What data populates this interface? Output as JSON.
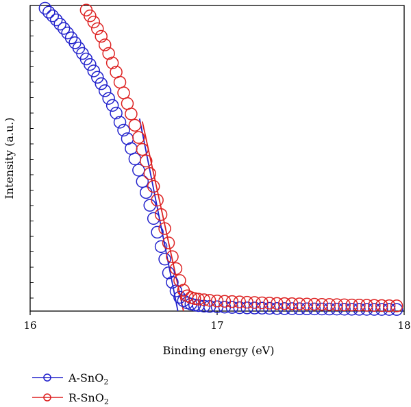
{
  "chart_data": {
    "type": "scatter",
    "xlabel": "Binding energy (eV)",
    "ylabel": "Intensity (a.u.)",
    "xlim": [
      16,
      18
    ],
    "ylim": [
      0,
      100
    ],
    "x_ticks": [
      "16",
      "17",
      "18"
    ],
    "grid": false,
    "legend_position": "bottom-left",
    "series": [
      {
        "name_base": "A-SnO",
        "name_sub": "2",
        "color": "#2222cc",
        "marker": "open-circle",
        "x": [
          16.08,
          16.1,
          16.12,
          16.14,
          16.16,
          16.18,
          16.2,
          16.22,
          16.24,
          16.26,
          16.28,
          16.3,
          16.32,
          16.34,
          16.36,
          16.38,
          16.4,
          16.42,
          16.44,
          16.46,
          16.48,
          16.5,
          16.52,
          16.54,
          16.56,
          16.58,
          16.6,
          16.62,
          16.64,
          16.66,
          16.68,
          16.7,
          16.72,
          16.74,
          16.76,
          16.78,
          16.8,
          16.82,
          16.84,
          16.86,
          16.88,
          16.9,
          16.93,
          16.96,
          17.0,
          17.04,
          17.08,
          17.12,
          17.16,
          17.2,
          17.24,
          17.28,
          17.32,
          17.36,
          17.4,
          17.44,
          17.48,
          17.52,
          17.56,
          17.6,
          17.64,
          17.68,
          17.72,
          17.76,
          17.8,
          17.84,
          17.88,
          17.92,
          17.96
        ],
        "y": [
          99.1,
          97.8,
          96.6,
          95.3,
          93.9,
          92.5,
          91.0,
          89.4,
          87.8,
          86.1,
          84.3,
          82.5,
          80.7,
          78.6,
          76.5,
          74.4,
          72.1,
          69.6,
          67.3,
          64.8,
          61.8,
          59.2,
          56.4,
          53.2,
          49.8,
          46.1,
          42.4,
          38.8,
          34.6,
          30.3,
          25.8,
          21.1,
          17.0,
          12.5,
          9.4,
          6.6,
          4.5,
          3.4,
          2.7,
          2.3,
          2.0,
          1.8,
          1.6,
          1.5,
          1.4,
          1.3,
          1.2,
          1.1,
          1.05,
          1.0,
          0.95,
          0.9,
          0.85,
          0.8,
          0.78,
          0.75,
          0.72,
          0.7,
          0.68,
          0.66,
          0.64,
          0.62,
          0.6,
          0.58,
          0.56,
          0.55,
          0.54,
          0.53,
          0.52
        ],
        "fit_line": {
          "x": [
            16.585,
            16.79
          ],
          "y": [
            63.0,
            0.0
          ]
        }
      },
      {
        "name_base": "R-SnO",
        "name_sub": "2",
        "color": "#dd2222",
        "marker": "open-circle",
        "x": [
          16.3,
          16.32,
          16.34,
          16.36,
          16.38,
          16.4,
          16.42,
          16.44,
          16.46,
          16.48,
          16.5,
          16.52,
          16.54,
          16.56,
          16.58,
          16.6,
          16.62,
          16.64,
          16.66,
          16.68,
          16.7,
          16.72,
          16.74,
          16.76,
          16.78,
          16.8,
          16.82,
          16.84,
          16.86,
          16.88,
          16.9,
          16.93,
          16.96,
          17.0,
          17.04,
          17.08,
          17.12,
          17.16,
          17.2,
          17.24,
          17.28,
          17.32,
          17.36,
          17.4,
          17.44,
          17.48,
          17.52,
          17.56,
          17.6,
          17.64,
          17.68,
          17.72,
          17.76,
          17.8,
          17.84,
          17.88,
          17.92,
          17.96
        ],
        "y": [
          98.5,
          96.6,
          94.6,
          92.4,
          89.9,
          87.1,
          84.3,
          81.2,
          78.2,
          74.9,
          71.4,
          67.9,
          64.5,
          60.8,
          56.8,
          52.9,
          49.1,
          45.0,
          40.8,
          36.3,
          31.6,
          27.0,
          22.3,
          17.8,
          13.9,
          10.0,
          6.8,
          5.0,
          4.4,
          4.1,
          3.9,
          3.7,
          3.5,
          3.3,
          3.2,
          3.1,
          3.0,
          2.9,
          2.8,
          2.7,
          2.6,
          2.5,
          2.45,
          2.4,
          2.35,
          2.3,
          2.25,
          2.2,
          2.15,
          2.1,
          2.05,
          2.0,
          1.95,
          1.9,
          1.85,
          1.8,
          1.75,
          1.7
        ],
        "fit_line": {
          "x": [
            16.6,
            16.82
          ],
          "y": [
            62.0,
            0.0
          ]
        }
      }
    ]
  }
}
